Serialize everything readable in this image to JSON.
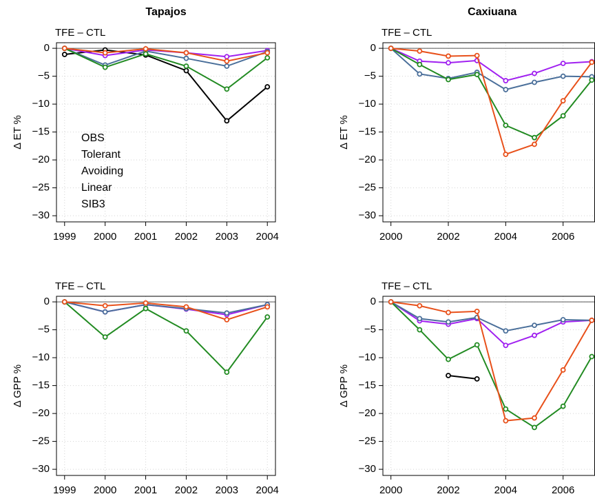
{
  "chart_data": [
    {
      "type": "line",
      "title": "Tapajos",
      "subtitle": "TFE – CTL",
      "ylabel": "Δ ET %",
      "x": [
        1999,
        2000,
        2001,
        2002,
        2003,
        2004
      ],
      "xlim": [
        1998.8,
        2004.2
      ],
      "xticks": [
        1999,
        2000,
        2001,
        2002,
        2003,
        2004
      ],
      "ylim": [
        -31.1,
        1
      ],
      "yticks": [
        0,
        {
          "value": -5,
          "label": "−5"
        },
        {
          "value": -10,
          "label": "−10"
        },
        {
          "value": -15,
          "label": "−15"
        },
        {
          "value": -20,
          "label": "−20"
        },
        {
          "value": -25,
          "label": "−25"
        },
        {
          "value": -30,
          "label": "−30"
        }
      ],
      "grid": true,
      "reference_line": 0,
      "legend": "center-left",
      "series": [
        {
          "name": "OBS",
          "color": "#000000",
          "values": [
            -1.1,
            -0.3,
            -1.2,
            -4,
            -13,
            -6.9
          ]
        },
        {
          "name": "Tolerant",
          "color": "#a020f0",
          "values": [
            0,
            -1.3,
            -0.3,
            -0.8,
            -1.5,
            -0.4
          ]
        },
        {
          "name": "Avoiding",
          "color": "#4a6f9a",
          "values": [
            0,
            -3,
            -0.5,
            -1.8,
            -3.2,
            -0.6
          ]
        },
        {
          "name": "Linear",
          "color": "#228b22",
          "values": [
            0,
            -3.4,
            -1,
            -3.2,
            -7.3,
            -1.7
          ]
        },
        {
          "name": "SIB3",
          "color": "#e8501a",
          "values": [
            0,
            -0.8,
            -0.1,
            -0.8,
            -2.3,
            -0.8
          ]
        }
      ]
    },
    {
      "type": "line",
      "title": "Caxiuana",
      "subtitle": "TFE – CTL",
      "ylabel": "Δ ET %",
      "x": [
        2000,
        2001,
        2002,
        2003,
        2004,
        2005,
        2006,
        2007
      ],
      "xlim": [
        1999.72,
        2007.1
      ],
      "xticks": [
        2000,
        2002,
        2004,
        2006
      ],
      "ylim": [
        -31.1,
        1
      ],
      "yticks": [
        0,
        {
          "value": -5,
          "label": "−5"
        },
        {
          "value": -10,
          "label": "−10"
        },
        {
          "value": -15,
          "label": "−15"
        },
        {
          "value": -20,
          "label": "−20"
        },
        {
          "value": -25,
          "label": "−25"
        },
        {
          "value": -30,
          "label": "−30"
        }
      ],
      "grid": true,
      "reference_line": 0,
      "series": [
        {
          "color": "#a020f0",
          "values": [
            0,
            -2.3,
            -2.6,
            -2.2,
            -5.8,
            -4.5,
            -2.7,
            -2.4
          ]
        },
        {
          "color": "#4a6f9a",
          "values": [
            0,
            -4.6,
            -5.4,
            -4.3,
            -7.4,
            -6.1,
            -5,
            -5.1
          ]
        },
        {
          "color": "#228b22",
          "values": [
            0,
            -2.9,
            -5.6,
            -4.7,
            -13.8,
            -16,
            -12.1,
            -5.7
          ]
        },
        {
          "color": "#e8501a",
          "values": [
            0,
            -0.5,
            -1.4,
            -1.3,
            -19,
            -17.2,
            -9.4,
            -2.5
          ]
        }
      ]
    },
    {
      "type": "line",
      "subtitle": "TFE – CTL",
      "ylabel": "Δ GPP %",
      "x": [
        1999,
        2000,
        2001,
        2002,
        2003,
        2004
      ],
      "xlim": [
        1998.8,
        2004.2
      ],
      "xticks": [
        1999,
        2000,
        2001,
        2002,
        2003,
        2004
      ],
      "ylim": [
        -31.1,
        1
      ],
      "yticks": [
        0,
        {
          "value": -5,
          "label": "−5"
        },
        {
          "value": -10,
          "label": "−10"
        },
        {
          "value": -15,
          "label": "−15"
        },
        {
          "value": -20,
          "label": "−20"
        },
        {
          "value": -25,
          "label": "−25"
        },
        {
          "value": -30,
          "label": "−30"
        }
      ],
      "grid": true,
      "reference_line": 0,
      "series": [
        {
          "color": "#a020f0",
          "values": [
            0,
            -1.8,
            -0.5,
            -1.3,
            -2.3,
            -0.5
          ]
        },
        {
          "color": "#4a6f9a",
          "values": [
            0,
            -1.8,
            -0.5,
            -1.2,
            -2,
            -0.5
          ]
        },
        {
          "color": "#228b22",
          "values": [
            0,
            -6.3,
            -1.2,
            -5.2,
            -12.6,
            -2.7
          ]
        },
        {
          "color": "#e8501a",
          "values": [
            0,
            -0.7,
            -0.2,
            -0.9,
            -3.2,
            -0.9
          ]
        }
      ]
    },
    {
      "type": "line",
      "subtitle": "TFE – CTL",
      "ylabel": "Δ GPP %",
      "x": [
        2000,
        2001,
        2002,
        2003,
        2004,
        2005,
        2006,
        2007
      ],
      "xlim": [
        1999.72,
        2007.1
      ],
      "xticks": [
        2000,
        2002,
        2004,
        2006
      ],
      "ylim": [
        -31.1,
        1
      ],
      "yticks": [
        0,
        {
          "value": -5,
          "label": "−5"
        },
        {
          "value": -10,
          "label": "−10"
        },
        {
          "value": -15,
          "label": "−15"
        },
        {
          "value": -20,
          "label": "−20"
        },
        {
          "value": -25,
          "label": "−25"
        },
        {
          "value": -30,
          "label": "−30"
        }
      ],
      "grid": true,
      "reference_line": 0,
      "series": [
        {
          "color": "#000000",
          "values": [
            null,
            null,
            -13.2,
            -13.8,
            null,
            null,
            null,
            null
          ]
        },
        {
          "color": "#a020f0",
          "values": [
            0,
            -3.4,
            -4,
            -3,
            -7.8,
            -6,
            -3.6,
            -3.3
          ]
        },
        {
          "color": "#4a6f9a",
          "values": [
            0,
            -3,
            -3.6,
            -2.8,
            -5.2,
            -4.2,
            -3.2,
            -3.3
          ]
        },
        {
          "color": "#228b22",
          "values": [
            0,
            -5,
            -10.3,
            -7.7,
            -19.2,
            -22.5,
            -18.7,
            -9.8
          ]
        },
        {
          "color": "#e8501a",
          "values": [
            0,
            -0.7,
            -1.9,
            -1.7,
            -21.3,
            -20.8,
            -12.2,
            -3.3
          ]
        }
      ]
    }
  ]
}
